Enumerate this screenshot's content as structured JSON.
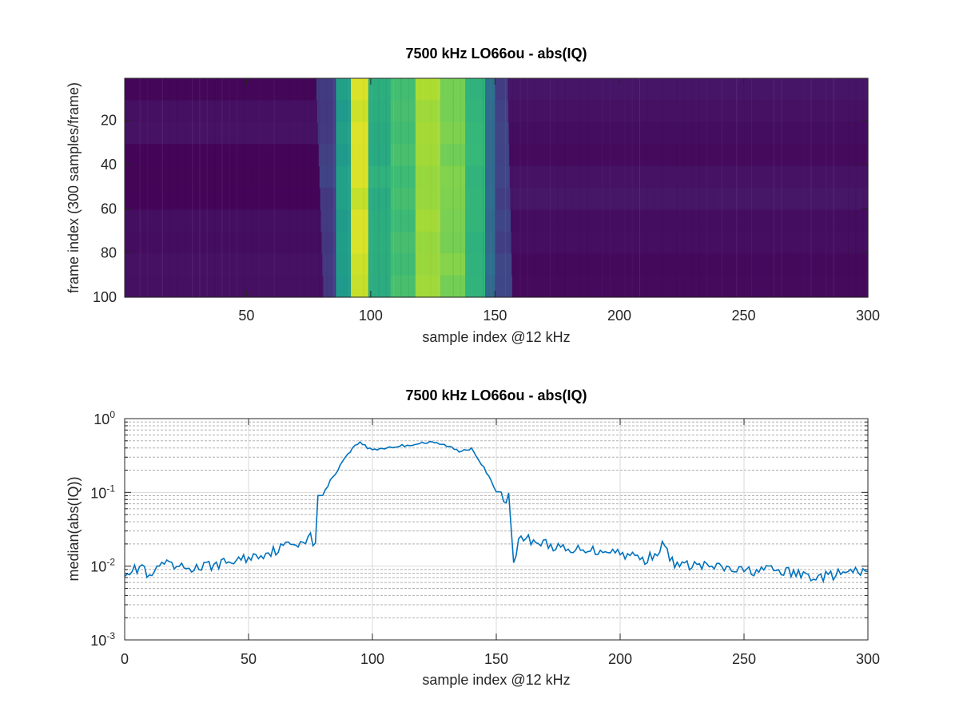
{
  "chart_data": [
    {
      "type": "heatmap",
      "title": "7500 kHz LO66ou - abs(IQ)",
      "xlabel": "sample index @12 kHz",
      "ylabel": "frame index (300 samples/frame)",
      "xlim": [
        1,
        300
      ],
      "ylim": [
        1,
        100
      ],
      "y_reversed": true,
      "xticks": [
        50,
        100,
        150,
        200,
        250,
        300
      ],
      "yticks": [
        20,
        40,
        60,
        80,
        100
      ],
      "colormap": "viridis",
      "columns": [
        {
          "x_start": 1,
          "x_end": 78,
          "level": 0.03
        },
        {
          "x_start": 78,
          "x_end": 86,
          "level": 0.18
        },
        {
          "x_start": 86,
          "x_end": 92,
          "level": 0.55
        },
        {
          "x_start": 92,
          "x_end": 99,
          "level": 0.93
        },
        {
          "x_start": 99,
          "x_end": 108,
          "level": 0.62
        },
        {
          "x_start": 108,
          "x_end": 118,
          "level": 0.7
        },
        {
          "x_start": 118,
          "x_end": 128,
          "level": 0.86
        },
        {
          "x_start": 128,
          "x_end": 138,
          "level": 0.8
        },
        {
          "x_start": 138,
          "x_end": 146,
          "level": 0.65
        },
        {
          "x_start": 146,
          "x_end": 150,
          "level": 0.35
        },
        {
          "x_start": 150,
          "x_end": 155,
          "level": 0.2
        },
        {
          "x_start": 155,
          "x_end": 300,
          "level": 0.04
        }
      ],
      "band_edge_left": [
        {
          "frame": 1,
          "x": 78
        },
        {
          "frame": 100,
          "x": 81
        }
      ],
      "band_edge_right": [
        {
          "frame": 1,
          "x": 154
        },
        {
          "frame": 100,
          "x": 156
        }
      ]
    },
    {
      "type": "line",
      "title": "7500 kHz LO66ou - abs(IQ)",
      "xlabel": "sample index @12 kHz",
      "ylabel": "median(abs(IQ))",
      "xlim": [
        0,
        300
      ],
      "ylim": [
        0.001,
        1
      ],
      "yscale": "log",
      "grid": true,
      "minor_grid": true,
      "xticks": [
        0,
        50,
        100,
        150,
        200,
        250,
        300
      ],
      "yticks": [
        {
          "base": "10",
          "exp": "-3",
          "value": 0.001
        },
        {
          "base": "10",
          "exp": "-2",
          "value": 0.01
        },
        {
          "base": "10",
          "exp": "-1",
          "value": 0.1
        },
        {
          "base": "10",
          "exp": "0",
          "value": 1
        }
      ],
      "series": [
        {
          "color": "#0072bd",
          "x": [
            0,
            5,
            7,
            10,
            15,
            20,
            30,
            40,
            50,
            60,
            65,
            70,
            75,
            77,
            78,
            80,
            85,
            90,
            95,
            98,
            100,
            105,
            110,
            115,
            120,
            125,
            130,
            135,
            140,
            145,
            150,
            153,
            155,
            157,
            160,
            165,
            170,
            175,
            180,
            185,
            190,
            195,
            200,
            205,
            210,
            215,
            218,
            220,
            225,
            230,
            240,
            250,
            260,
            270,
            280,
            290,
            300
          ],
          "y": [
            0.0085,
            0.009,
            0.0105,
            0.0065,
            0.011,
            0.0095,
            0.0095,
            0.011,
            0.013,
            0.016,
            0.019,
            0.021,
            0.025,
            0.018,
            0.085,
            0.1,
            0.18,
            0.34,
            0.49,
            0.4,
            0.38,
            0.4,
            0.42,
            0.44,
            0.47,
            0.47,
            0.43,
            0.36,
            0.4,
            0.22,
            0.1,
            0.082,
            0.085,
            0.013,
            0.025,
            0.022,
            0.02,
            0.018,
            0.015,
            0.018,
            0.016,
            0.017,
            0.015,
            0.014,
            0.012,
            0.016,
            0.02,
            0.012,
            0.01,
            0.0105,
            0.0095,
            0.0085,
            0.009,
            0.008,
            0.007,
            0.008,
            0.0085
          ]
        }
      ]
    }
  ]
}
